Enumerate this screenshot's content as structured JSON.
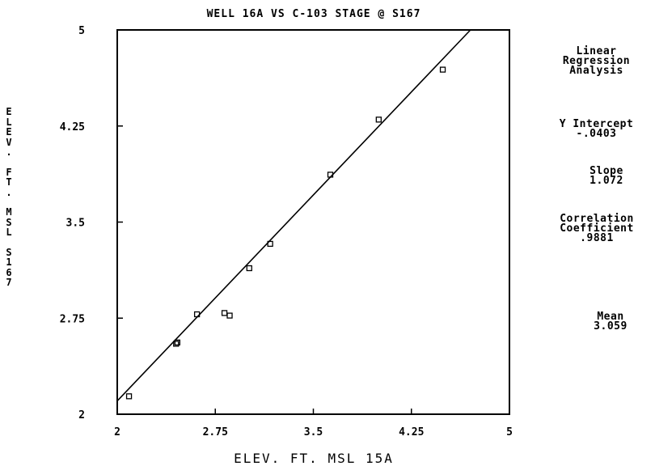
{
  "chart_data": {
    "type": "scatter",
    "title": "WELL 16A VS C-103 STAGE @ S167",
    "xlabel": "ELEV. FT. MSL 15A",
    "ylabel": "ELEV. FT. MSL S167",
    "xlim": [
      2,
      5
    ],
    "ylim": [
      2,
      5
    ],
    "x_ticks": [
      "2",
      "2.75",
      "3.5",
      "4.25",
      "5"
    ],
    "y_ticks": [
      "2",
      "2.75",
      "3.5",
      "4.25",
      "5"
    ],
    "points": [
      {
        "x": 2.09,
        "y": 2.14
      },
      {
        "x": 2.45,
        "y": 2.55
      },
      {
        "x": 2.46,
        "y": 2.56
      },
      {
        "x": 2.61,
        "y": 2.78
      },
      {
        "x": 2.82,
        "y": 2.79
      },
      {
        "x": 2.86,
        "y": 2.77
      },
      {
        "x": 3.01,
        "y": 3.14
      },
      {
        "x": 3.17,
        "y": 3.33
      },
      {
        "x": 3.63,
        "y": 3.87
      },
      {
        "x": 4.0,
        "y": 4.3
      },
      {
        "x": 4.49,
        "y": 4.69
      }
    ],
    "regression": {
      "intercept": -0.0403,
      "slope": 1.072
    },
    "grid": false
  },
  "side_panel": {
    "analysis_lines": [
      "Linear",
      "Regression",
      "Analysis"
    ],
    "intercept_label": "Y Intercept",
    "intercept_value": "-.0403",
    "slope_label": "Slope",
    "slope_value": "1.072",
    "correlation_lines": [
      "Correlation",
      "Coefficient"
    ],
    "correlation_value": ".9881",
    "mean_label": "Mean",
    "mean_value": "3.059"
  }
}
